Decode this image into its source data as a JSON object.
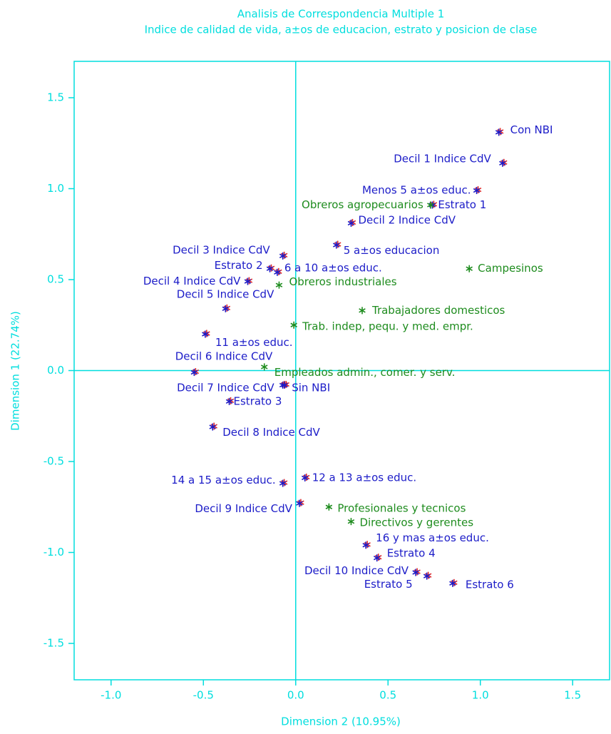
{
  "chart_data": {
    "type": "scatter",
    "title": "Analisis de Correspondencia Multiple 1",
    "subtitle": "Indice de calidad de vida, a±os de educacion, estrato y posicion de clase",
    "xlabel": "Dimension 2 (10.95%)",
    "ylabel": "Dimension 1 (22.74%)",
    "xlim": [
      -1.2,
      1.7
    ],
    "ylim": [
      -1.7,
      1.7
    ],
    "xticks": [
      {
        "value": -1.0,
        "label": "-1.0"
      },
      -0.5,
      {
        "value": 0.0,
        "label": "0.0"
      },
      0.5,
      {
        "value": 1.0,
        "label": "1.0"
      },
      1.5
    ],
    "yticks": [
      {
        "value": -1.5,
        "label": "-1.5"
      },
      {
        "value": -1.0,
        "label": "-1.0"
      },
      {
        "value": -0.5,
        "label": "-0.5"
      },
      {
        "value": 0.0,
        "label": "0.0"
      },
      0.5,
      {
        "value": 1.0,
        "label": "1.0"
      },
      1.5
    ],
    "axis_color": "#00dede",
    "series": [
      {
        "color": "#1c1cc8",
        "color2": "#e02828",
        "labels": [
          "Con NBI",
          "Decil 1 Indice CdV",
          "Menos 5 a±os educ.",
          "Estrato 1",
          "Decil 2 Indice CdV",
          "5 a±os educacion",
          "Decil 3 Indice CdV",
          "Estrato 2",
          "6 a 10 a±os educ.",
          "Decil 4 Indice CdV",
          "Decil 5 Indice CdV",
          "11 a±os educ.",
          "Decil 6 Indice CdV",
          "Decil 7 Indice CdV",
          "Sin NBI",
          "Estrato 3",
          "Decil 8 Indice CdV",
          "14 a 15 a±os educ.",
          "12 a 13 a±os educ.",
          "Decil 9 Indice CdV",
          "16 y mas a±os educ.",
          "Estrato 4",
          "Decil 10 Indice CdV",
          "Estrato 5",
          "Estrato 6"
        ],
        "x": [
          1.1,
          1.12,
          0.98,
          0.74,
          0.3,
          0.22,
          -0.07,
          -0.14,
          -0.1,
          -0.26,
          -0.38,
          -0.49,
          -0.55,
          -0.07,
          -0.06,
          -0.36,
          -0.45,
          -0.07,
          0.05,
          0.02,
          0.38,
          0.44,
          0.65,
          0.71,
          0.85
        ],
        "y": [
          1.31,
          1.14,
          0.99,
          0.91,
          0.81,
          0.69,
          0.63,
          0.56,
          0.54,
          0.49,
          0.34,
          0.2,
          -0.01,
          -0.08,
          -0.08,
          -0.17,
          -0.31,
          -0.62,
          -0.59,
          -0.73,
          -0.96,
          -1.03,
          -1.11,
          -1.13,
          -1.17
        ]
      },
      {
        "color": "#1e8c1e",
        "labels": [
          "Obreros agropecuarios",
          "Campesinos",
          "Obreros industriales",
          "Trabajadores domesticos",
          "Trab. indep, pequ. y med. empr.",
          "Empleados admin., comer. y serv.",
          "Profesionales y tecnicos",
          "Directivos y gerentes"
        ],
        "x": [
          0.73,
          0.94,
          -0.09,
          0.36,
          -0.01,
          -0.17,
          0.18,
          0.3
        ],
        "y": [
          0.91,
          0.56,
          0.47,
          0.33,
          0.25,
          0.02,
          -0.75,
          -0.83
        ]
      }
    ]
  }
}
